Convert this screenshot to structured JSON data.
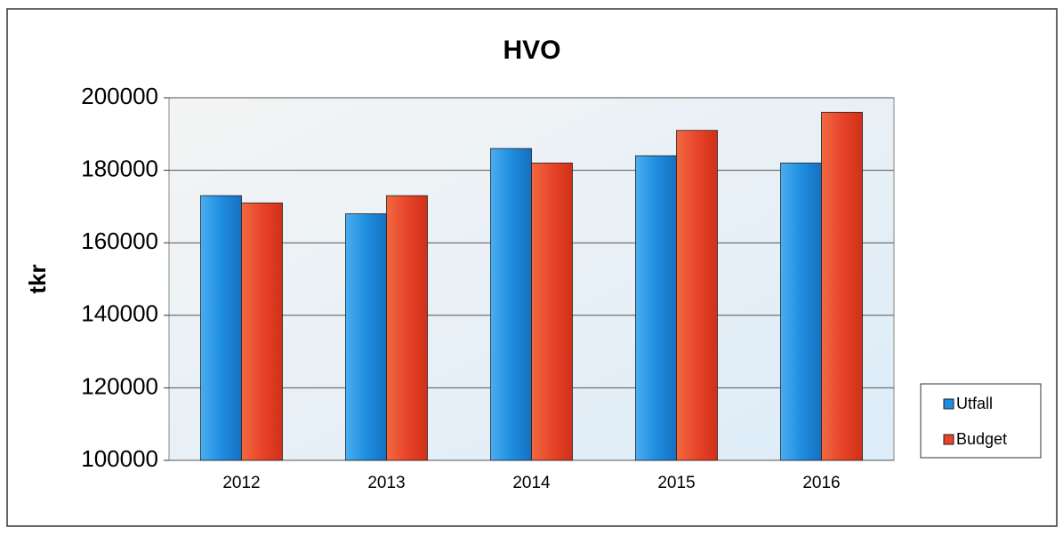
{
  "chart_data": {
    "type": "bar",
    "title": "HVO",
    "y_label": "tkr",
    "categories": [
      "2012",
      "2013",
      "2014",
      "2015",
      "2016"
    ],
    "series": [
      {
        "name": "Utfall",
        "color": "#1f8ee0",
        "values": [
          173000,
          168000,
          186000,
          184000,
          182000
        ]
      },
      {
        "name": "Budget",
        "color": "#e8442a",
        "values": [
          171000,
          173000,
          182000,
          191000,
          196000
        ]
      }
    ],
    "ylim": [
      100000,
      200000
    ],
    "yticks": [
      100000,
      120000,
      140000,
      160000,
      180000,
      200000
    ],
    "grid": true,
    "legend": "right"
  }
}
